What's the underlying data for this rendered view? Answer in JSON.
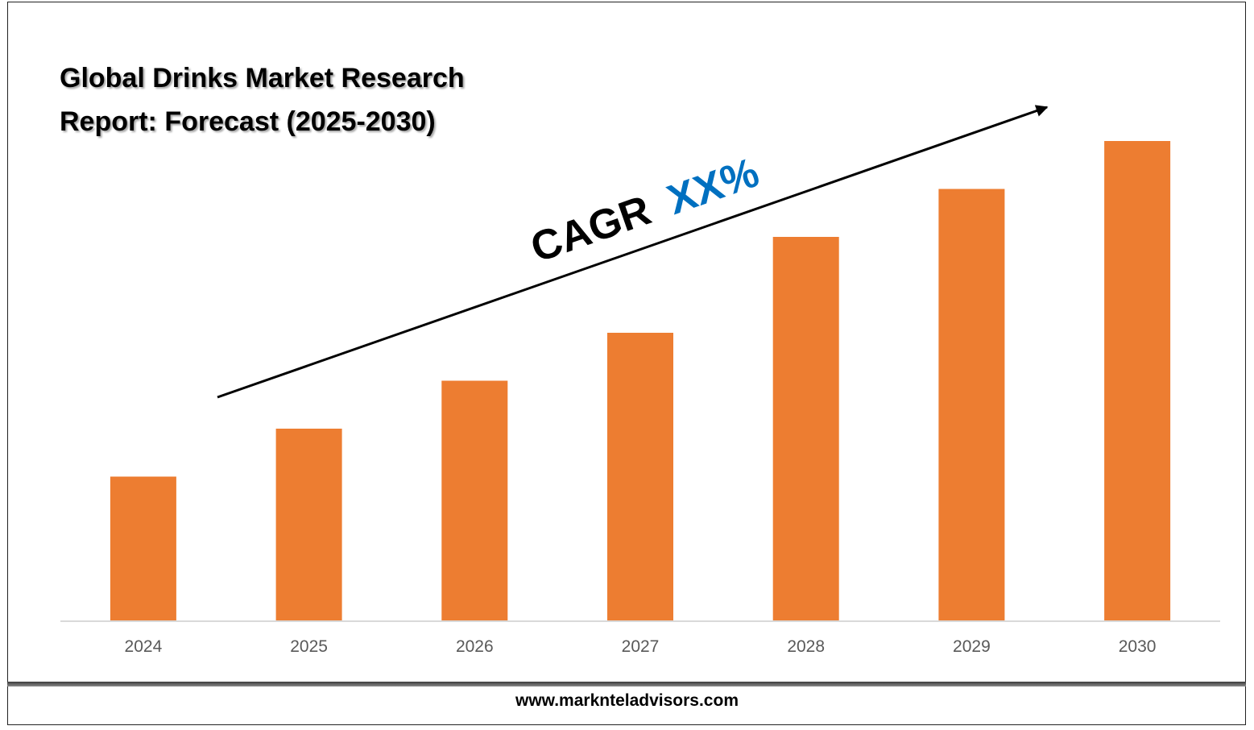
{
  "title": {
    "line1": "Global Drinks Market Research",
    "line2": "Report: Forecast (2025-2030)"
  },
  "annotation": {
    "prefix": "CAGR",
    "value": "XX%",
    "prefix_color": "#000000",
    "value_color": "#0070C0"
  },
  "footer": {
    "website": "www.marknteladvisors.com"
  },
  "colors": {
    "bar": "#ED7D31",
    "axis": "#D9D9D9",
    "tick_text": "#595959"
  },
  "chart_data": {
    "type": "bar",
    "title": "Global Drinks Market Research Report: Forecast (2025-2030)",
    "categories": [
      "2024",
      "2025",
      "2026",
      "2027",
      "2028",
      "2029",
      "2030"
    ],
    "values": [
      30,
      40,
      50,
      60,
      80,
      90,
      100
    ],
    "ylim": [
      0,
      100
    ],
    "xlabel": "",
    "ylabel": "",
    "grid": false,
    "legend": "none"
  }
}
